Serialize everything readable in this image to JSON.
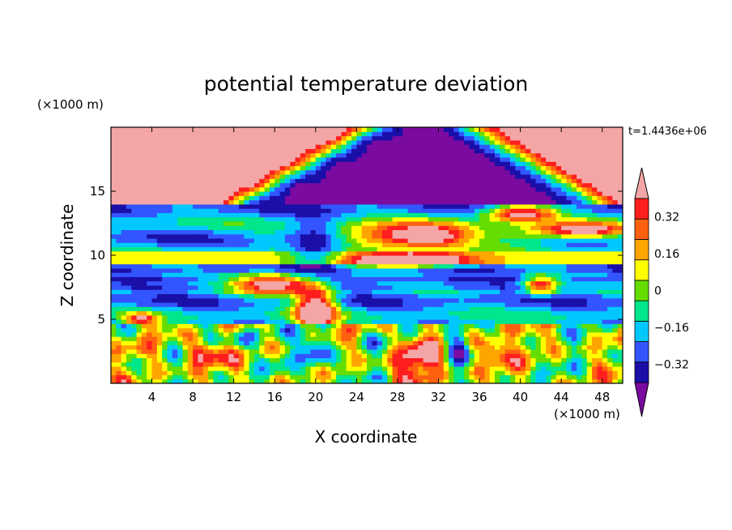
{
  "chart_data": {
    "type": "heatmap",
    "title": "potential temperature deviation",
    "xlabel": "X coordinate",
    "ylabel": "Z coordinate",
    "x_unit": "(×1000 m)",
    "y_unit": "(×1000 m)",
    "time_label": "t=1.4436e+06",
    "xlim": [
      0,
      50
    ],
    "ylim": [
      0,
      20
    ],
    "x_ticks": [
      4,
      8,
      12,
      16,
      20,
      24,
      28,
      32,
      36,
      40,
      44,
      48
    ],
    "y_ticks": [
      5,
      10,
      15
    ],
    "grid": false,
    "colorbar": {
      "position": "right",
      "min": -0.4,
      "max": 0.4,
      "step": 0.08,
      "labels": [
        {
          "value": 0.32,
          "text": "0.32"
        },
        {
          "value": 0.16,
          "text": "0.16"
        },
        {
          "value": 0,
          "text": "0"
        },
        {
          "value": -0.16,
          "text": "−0.16"
        },
        {
          "value": -0.32,
          "text": "−0.32"
        }
      ],
      "colors": [
        "#7a0aa0",
        "#1a0fa8",
        "#3355ff",
        "#00c8ff",
        "#00e68a",
        "#66dd00",
        "#ffff00",
        "#ffa500",
        "#ff6010",
        "#ff1e1e",
        "#f4a6a6"
      ]
    },
    "description_regions": {
      "upper_layer_z_range": [
        14,
        20
      ],
      "lower_turbulent_layer_z_range": [
        0,
        4.8
      ]
    }
  }
}
